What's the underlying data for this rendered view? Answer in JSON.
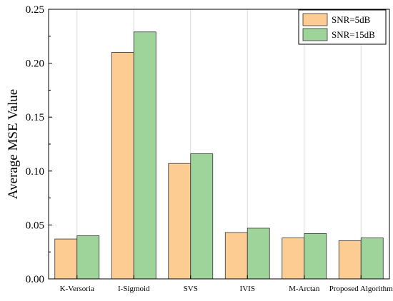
{
  "chart_data": {
    "type": "bar",
    "title": "",
    "xlabel": "",
    "ylabel": "Average MSE Value",
    "ylim": [
      0,
      0.25
    ],
    "yticks": [
      "0.00",
      "0.05",
      "0.10",
      "0.15",
      "0.20",
      "0.25"
    ],
    "grid": true,
    "legend_position": "top-right",
    "categories": [
      "K-Versoria",
      "I-Sigmoid",
      "SVS",
      "IVIS",
      "M-Arctan",
      "Proposed Algorithm"
    ],
    "series": [
      {
        "name": "SNR=5dB",
        "color": "#fdcc93",
        "values": [
          0.037,
          0.21,
          0.107,
          0.043,
          0.038,
          0.0355
        ]
      },
      {
        "name": "SNR=15dB",
        "color": "#9ed49a",
        "values": [
          0.04,
          0.229,
          0.116,
          0.047,
          0.042,
          0.038
        ]
      }
    ]
  }
}
